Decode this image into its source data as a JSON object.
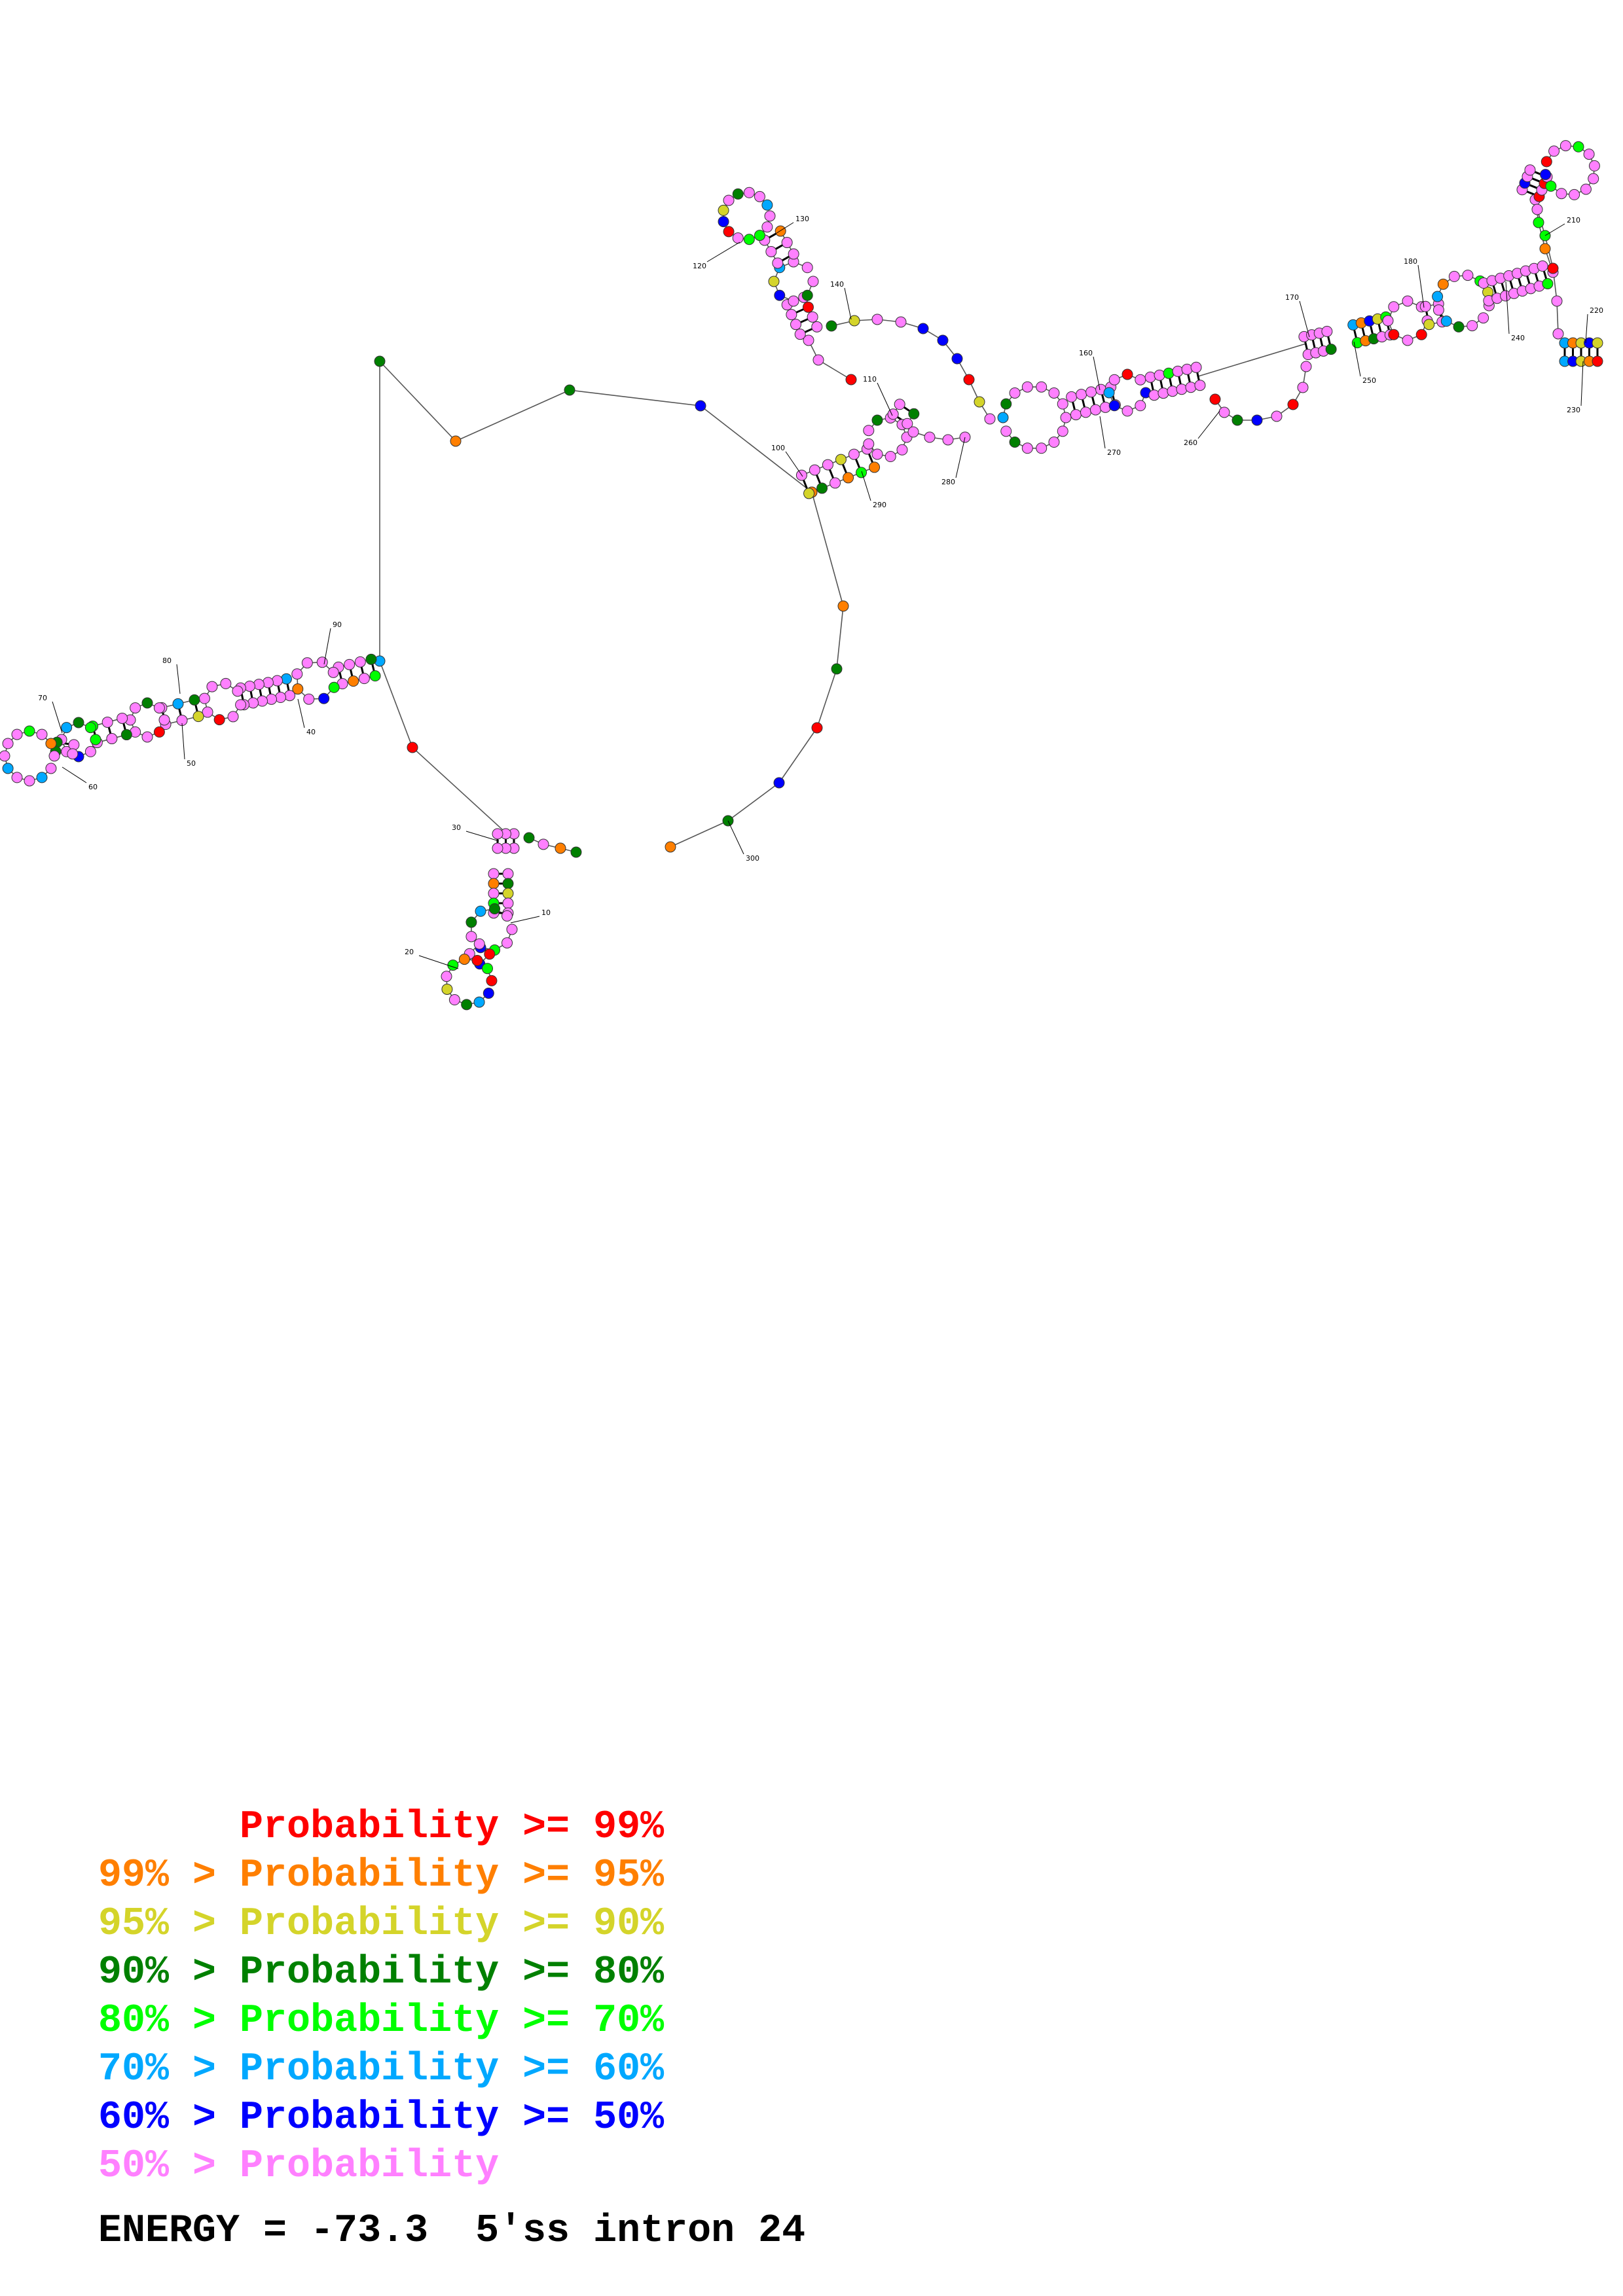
{
  "colors": {
    "p99": "#ff0000",
    "p95": "#ff7f00",
    "p90": "#d4d42a",
    "p80": "#008000",
    "p70": "#00ff00",
    "p60": "#00a8ff",
    "p50": "#0000ff",
    "plow": "#ff80ff",
    "backbone": "#555555",
    "bond": "#000000"
  },
  "position_labels": [
    "10",
    "20",
    "30",
    "40",
    "50",
    "60",
    "70",
    "80",
    "90",
    "100",
    "110",
    "120",
    "130",
    "140",
    "160",
    "170",
    "180",
    "210",
    "220",
    "230",
    "240",
    "250",
    "260",
    "270",
    "280",
    "290",
    "300"
  ],
  "legend": [
    {
      "text": "      Probability >= 99%",
      "color_key": "p99"
    },
    {
      "text": "99% > Probability >= 95%",
      "color_key": "p95"
    },
    {
      "text": "95% > Probability >= 90%",
      "color_key": "p90"
    },
    {
      "text": "90% > Probability >= 80%",
      "color_key": "p80"
    },
    {
      "text": "80% > Probability >= 70%",
      "color_key": "p70"
    },
    {
      "text": "70% > Probability >= 60%",
      "color_key": "p60"
    },
    {
      "text": "60% > Probability >= 50%",
      "color_key": "p50"
    },
    {
      "text": "50% > Probability",
      "color_key": "plow"
    }
  ],
  "energy_text": "ENERGY = -73.3  5'ss intron 24"
}
